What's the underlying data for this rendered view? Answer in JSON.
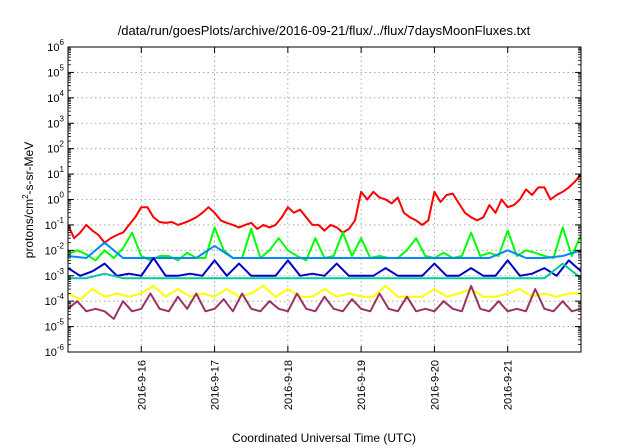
{
  "chart_data": {
    "type": "line",
    "title": "/data/run/goesPlots/archive/2016-09-21/flux/../flux/7daysMoonFluxes.txt",
    "xlabel": "Coordinated Universal Time (UTC)",
    "ylabel": "protons/cm2-s-sr-MeV",
    "ylabel_parts": [
      "protons/cm",
      "2",
      "-s-sr-MeV"
    ],
    "yscale": "log",
    "ylim": [
      1e-06,
      1000000.0
    ],
    "y_ticks": [
      {
        "base": "10",
        "exp": "-6"
      },
      {
        "base": "10",
        "exp": "-5"
      },
      {
        "base": "10",
        "exp": "-4"
      },
      {
        "base": "10",
        "exp": "-3"
      },
      {
        "base": "10",
        "exp": "-2"
      },
      {
        "base": "10",
        "exp": "-1"
      },
      {
        "base": "10",
        "exp": "0"
      },
      {
        "base": "10",
        "exp": "1"
      },
      {
        "base": "10",
        "exp": "2"
      },
      {
        "base": "10",
        "exp": "3"
      },
      {
        "base": "10",
        "exp": "4"
      },
      {
        "base": "10",
        "exp": "5"
      },
      {
        "base": "10",
        "exp": "6"
      }
    ],
    "xlim": [
      "2016-09-15T00:00",
      "2016-09-22T00:00"
    ],
    "x_ticks": [
      "2016-9-16",
      "2016-9-17",
      "2016-9-18",
      "2016-9-19",
      "2016-9-20",
      "2016-9-21"
    ],
    "x_tick_dates": [
      "2016-09-16",
      "2016-09-17",
      "2016-09-18",
      "2016-09-19",
      "2016-09-20",
      "2016-09-21"
    ],
    "grid": true,
    "legend": "none",
    "series": [
      {
        "color": "#ff0000",
        "x": [
          "2016-09-15T00:00",
          "2016-09-15T02:00",
          "2016-09-15T04:00",
          "2016-09-15T06:00",
          "2016-09-15T08:00",
          "2016-09-15T10:00",
          "2016-09-15T12:00",
          "2016-09-15T14:00",
          "2016-09-15T16:00",
          "2016-09-15T18:00",
          "2016-09-15T20:00",
          "2016-09-15T22:00",
          "2016-09-16T00:00",
          "2016-09-16T02:00",
          "2016-09-16T04:00",
          "2016-09-16T06:00",
          "2016-09-16T08:00",
          "2016-09-16T10:00",
          "2016-09-16T12:00",
          "2016-09-16T14:00",
          "2016-09-16T16:00",
          "2016-09-16T18:00",
          "2016-09-16T20:00",
          "2016-09-16T22:00",
          "2016-09-17T00:00",
          "2016-09-17T02:00",
          "2016-09-17T04:00",
          "2016-09-17T06:00",
          "2016-09-17T08:00",
          "2016-09-17T10:00",
          "2016-09-17T12:00",
          "2016-09-17T14:00",
          "2016-09-17T16:00",
          "2016-09-17T18:00",
          "2016-09-17T20:00",
          "2016-09-17T22:00",
          "2016-09-18T00:00",
          "2016-09-18T02:00",
          "2016-09-18T04:00",
          "2016-09-18T06:00",
          "2016-09-18T08:00",
          "2016-09-18T10:00",
          "2016-09-18T12:00",
          "2016-09-18T14:00",
          "2016-09-18T16:00",
          "2016-09-18T18:00",
          "2016-09-18T20:00",
          "2016-09-18T22:00",
          "2016-09-19T00:00",
          "2016-09-19T02:00",
          "2016-09-19T04:00",
          "2016-09-19T06:00",
          "2016-09-19T08:00",
          "2016-09-19T10:00",
          "2016-09-19T12:00",
          "2016-09-19T14:00",
          "2016-09-19T16:00",
          "2016-09-19T18:00",
          "2016-09-19T20:00",
          "2016-09-19T22:00",
          "2016-09-20T00:00",
          "2016-09-20T02:00",
          "2016-09-20T04:00",
          "2016-09-20T06:00",
          "2016-09-20T08:00",
          "2016-09-20T10:00",
          "2016-09-20T12:00",
          "2016-09-20T14:00",
          "2016-09-20T16:00",
          "2016-09-20T18:00",
          "2016-09-20T20:00",
          "2016-09-20T22:00",
          "2016-09-21T00:00",
          "2016-09-21T02:00",
          "2016-09-21T04:00",
          "2016-09-21T06:00",
          "2016-09-21T08:00",
          "2016-09-21T10:00",
          "2016-09-21T12:00",
          "2016-09-21T14:00",
          "2016-09-21T16:00",
          "2016-09-21T18:00",
          "2016-09-21T20:00",
          "2016-09-21T22:00",
          "2016-09-22T00:00"
        ],
        "values": [
          0.1,
          0.03,
          0.05,
          0.1,
          0.06,
          0.04,
          0.02,
          0.03,
          0.04,
          0.05,
          0.1,
          0.2,
          0.5,
          0.5,
          0.2,
          0.13,
          0.12,
          0.13,
          0.1,
          0.12,
          0.15,
          0.2,
          0.3,
          0.5,
          0.3,
          0.15,
          0.12,
          0.1,
          0.08,
          0.1,
          0.12,
          0.07,
          0.1,
          0.08,
          0.1,
          0.2,
          0.5,
          0.3,
          0.4,
          0.2,
          0.1,
          0.1,
          0.06,
          0.1,
          0.08,
          0.05,
          0.07,
          0.15,
          2.0,
          1.0,
          2.0,
          1.2,
          1.0,
          0.7,
          1.2,
          0.3,
          0.2,
          0.15,
          0.1,
          0.15,
          2.0,
          0.8,
          1.5,
          1.7,
          0.7,
          0.3,
          0.2,
          0.15,
          0.2,
          0.6,
          0.3,
          1.0,
          0.5,
          0.6,
          1.0,
          2.5,
          1.5,
          3.0,
          3.0,
          1.0,
          1.5,
          2.0,
          3.0,
          5.0,
          10.0
        ]
      },
      {
        "color": "#00ff00",
        "x": [
          "2016-09-15T00:00",
          "2016-09-15T03:00",
          "2016-09-15T06:00",
          "2016-09-15T09:00",
          "2016-09-15T12:00",
          "2016-09-15T15:00",
          "2016-09-15T18:00",
          "2016-09-15T21:00",
          "2016-09-16T00:00",
          "2016-09-16T03:00",
          "2016-09-16T06:00",
          "2016-09-16T09:00",
          "2016-09-16T12:00",
          "2016-09-16T15:00",
          "2016-09-16T18:00",
          "2016-09-16T21:00",
          "2016-09-17T00:00",
          "2016-09-17T03:00",
          "2016-09-17T06:00",
          "2016-09-17T09:00",
          "2016-09-17T12:00",
          "2016-09-17T15:00",
          "2016-09-17T18:00",
          "2016-09-17T21:00",
          "2016-09-18T00:00",
          "2016-09-18T03:00",
          "2016-09-18T06:00",
          "2016-09-18T09:00",
          "2016-09-18T12:00",
          "2016-09-18T15:00",
          "2016-09-18T18:00",
          "2016-09-18T21:00",
          "2016-09-19T00:00",
          "2016-09-19T03:00",
          "2016-09-19T06:00",
          "2016-09-19T09:00",
          "2016-09-19T12:00",
          "2016-09-19T15:00",
          "2016-09-19T18:00",
          "2016-09-19T21:00",
          "2016-09-20T00:00",
          "2016-09-20T03:00",
          "2016-09-20T06:00",
          "2016-09-20T09:00",
          "2016-09-20T12:00",
          "2016-09-20T15:00",
          "2016-09-20T18:00",
          "2016-09-20T21:00",
          "2016-09-21T00:00",
          "2016-09-21T03:00",
          "2016-09-21T06:00",
          "2016-09-21T09:00",
          "2016-09-21T12:00",
          "2016-09-21T15:00",
          "2016-09-21T18:00",
          "2016-09-21T21:00",
          "2016-09-22T00:00"
        ],
        "values": [
          0.007,
          0.01,
          0.007,
          0.004,
          0.01,
          0.005,
          0.012,
          0.05,
          0.006,
          0.004,
          0.006,
          0.006,
          0.004,
          0.008,
          0.005,
          0.005,
          0.08,
          0.01,
          0.005,
          0.005,
          0.07,
          0.005,
          0.01,
          0.03,
          0.01,
          0.006,
          0.004,
          0.03,
          0.005,
          0.006,
          0.05,
          0.006,
          0.03,
          0.005,
          0.006,
          0.005,
          0.005,
          0.01,
          0.03,
          0.006,
          0.005,
          0.008,
          0.005,
          0.006,
          0.05,
          0.006,
          0.008,
          0.006,
          0.06,
          0.006,
          0.01,
          0.008,
          0.006,
          0.005,
          0.08,
          0.006,
          0.04
        ]
      },
      {
        "color": "#0088ff",
        "x": [
          "2016-09-15T00:00",
          "2016-09-15T06:00",
          "2016-09-15T12:00",
          "2016-09-15T18:00",
          "2016-09-16T00:00",
          "2016-09-16T06:00",
          "2016-09-16T12:00",
          "2016-09-16T18:00",
          "2016-09-17T00:00",
          "2016-09-17T06:00",
          "2016-09-17T12:00",
          "2016-09-17T18:00",
          "2016-09-18T00:00",
          "2016-09-18T06:00",
          "2016-09-18T12:00",
          "2016-09-18T18:00",
          "2016-09-19T00:00",
          "2016-09-19T06:00",
          "2016-09-19T12:00",
          "2016-09-19T18:00",
          "2016-09-20T00:00",
          "2016-09-20T06:00",
          "2016-09-20T12:00",
          "2016-09-20T18:00",
          "2016-09-21T00:00",
          "2016-09-21T06:00",
          "2016-09-21T12:00",
          "2016-09-21T18:00",
          "2016-09-22T00:00"
        ],
        "values": [
          0.006,
          0.005,
          0.02,
          0.005,
          0.005,
          0.005,
          0.005,
          0.005,
          0.015,
          0.005,
          0.005,
          0.005,
          0.005,
          0.005,
          0.005,
          0.005,
          0.005,
          0.005,
          0.005,
          0.005,
          0.005,
          0.005,
          0.005,
          0.005,
          0.01,
          0.005,
          0.005,
          0.006,
          0.01
        ]
      },
      {
        "color": "#0000cc",
        "x": [
          "2016-09-15T00:00",
          "2016-09-15T04:00",
          "2016-09-15T08:00",
          "2016-09-15T12:00",
          "2016-09-15T16:00",
          "2016-09-15T20:00",
          "2016-09-16T00:00",
          "2016-09-16T04:00",
          "2016-09-16T08:00",
          "2016-09-16T12:00",
          "2016-09-16T16:00",
          "2016-09-16T20:00",
          "2016-09-17T00:00",
          "2016-09-17T04:00",
          "2016-09-17T08:00",
          "2016-09-17T12:00",
          "2016-09-17T16:00",
          "2016-09-17T20:00",
          "2016-09-18T00:00",
          "2016-09-18T04:00",
          "2016-09-18T08:00",
          "2016-09-18T12:00",
          "2016-09-18T16:00",
          "2016-09-18T20:00",
          "2016-09-19T00:00",
          "2016-09-19T04:00",
          "2016-09-19T08:00",
          "2016-09-19T12:00",
          "2016-09-19T16:00",
          "2016-09-19T20:00",
          "2016-09-20T00:00",
          "2016-09-20T04:00",
          "2016-09-20T08:00",
          "2016-09-20T12:00",
          "2016-09-20T16:00",
          "2016-09-20T20:00",
          "2016-09-21T00:00",
          "2016-09-21T04:00",
          "2016-09-21T08:00",
          "2016-09-21T12:00",
          "2016-09-21T16:00",
          "2016-09-21T20:00",
          "2016-09-22T00:00"
        ],
        "values": [
          0.002,
          0.001,
          0.0015,
          0.003,
          0.001,
          0.0012,
          0.001,
          0.005,
          0.001,
          0.001,
          0.0012,
          0.001,
          0.004,
          0.001,
          0.003,
          0.001,
          0.001,
          0.001,
          0.004,
          0.001,
          0.0012,
          0.001,
          0.003,
          0.001,
          0.001,
          0.001,
          0.002,
          0.001,
          0.001,
          0.001,
          0.003,
          0.001,
          0.001,
          0.002,
          0.001,
          0.001,
          0.004,
          0.001,
          0.0012,
          0.002,
          0.001,
          0.004,
          0.0015
        ]
      },
      {
        "color": "#00c8a0",
        "x": [
          "2016-09-15T00:00",
          "2016-09-15T06:00",
          "2016-09-15T12:00",
          "2016-09-15T18:00",
          "2016-09-16T00:00",
          "2016-09-16T06:00",
          "2016-09-16T12:00",
          "2016-09-16T18:00",
          "2016-09-17T00:00",
          "2016-09-17T06:00",
          "2016-09-17T12:00",
          "2016-09-17T18:00",
          "2016-09-18T00:00",
          "2016-09-18T06:00",
          "2016-09-18T12:00",
          "2016-09-18T18:00",
          "2016-09-19T00:00",
          "2016-09-19T06:00",
          "2016-09-19T12:00",
          "2016-09-19T18:00",
          "2016-09-20T00:00",
          "2016-09-20T06:00",
          "2016-09-20T12:00",
          "2016-09-20T18:00",
          "2016-09-21T00:00",
          "2016-09-21T06:00",
          "2016-09-21T12:00",
          "2016-09-21T18:00",
          "2016-09-22T00:00"
        ],
        "values": [
          0.0008,
          0.0008,
          0.0012,
          0.0008,
          0.0008,
          0.0008,
          0.0008,
          0.0008,
          0.0008,
          0.0008,
          0.0008,
          0.0008,
          0.0008,
          0.0008,
          0.0008,
          0.0008,
          0.0008,
          0.0008,
          0.0008,
          0.0008,
          0.0008,
          0.0008,
          0.0008,
          0.0008,
          0.0008,
          0.0008,
          0.0008,
          0.003,
          0.0008
        ]
      },
      {
        "color": "#ffff00",
        "x": [
          "2016-09-15T00:00",
          "2016-09-15T04:00",
          "2016-09-15T08:00",
          "2016-09-15T12:00",
          "2016-09-15T16:00",
          "2016-09-15T20:00",
          "2016-09-16T00:00",
          "2016-09-16T04:00",
          "2016-09-16T08:00",
          "2016-09-16T12:00",
          "2016-09-16T16:00",
          "2016-09-16T20:00",
          "2016-09-17T00:00",
          "2016-09-17T04:00",
          "2016-09-17T08:00",
          "2016-09-17T12:00",
          "2016-09-17T16:00",
          "2016-09-17T20:00",
          "2016-09-18T00:00",
          "2016-09-18T04:00",
          "2016-09-18T08:00",
          "2016-09-18T12:00",
          "2016-09-18T16:00",
          "2016-09-18T20:00",
          "2016-09-19T00:00",
          "2016-09-19T04:00",
          "2016-09-19T08:00",
          "2016-09-19T12:00",
          "2016-09-19T16:00",
          "2016-09-19T20:00",
          "2016-09-20T00:00",
          "2016-09-20T04:00",
          "2016-09-20T08:00",
          "2016-09-20T12:00",
          "2016-09-20T16:00",
          "2016-09-20T20:00",
          "2016-09-21T00:00",
          "2016-09-21T04:00",
          "2016-09-21T08:00",
          "2016-09-21T12:00",
          "2016-09-21T16:00",
          "2016-09-21T20:00",
          "2016-09-22T00:00"
        ],
        "values": [
          0.0002,
          0.00012,
          0.0003,
          0.00015,
          0.0002,
          0.00015,
          0.0002,
          0.0004,
          0.00015,
          0.0003,
          0.00015,
          0.0002,
          0.00015,
          0.0003,
          0.00015,
          0.0002,
          0.0004,
          0.00015,
          0.0003,
          0.00015,
          0.00015,
          0.0003,
          0.00015,
          0.0002,
          0.00015,
          0.00015,
          0.0004,
          0.00015,
          0.00015,
          0.00015,
          0.0003,
          0.00015,
          0.0002,
          0.0003,
          0.00015,
          0.00015,
          0.0002,
          0.0003,
          0.00015,
          0.0002,
          0.00015,
          0.0002,
          0.0002
        ]
      },
      {
        "color": "#993366",
        "x": [
          "2016-09-15T00:00",
          "2016-09-15T03:00",
          "2016-09-15T06:00",
          "2016-09-15T09:00",
          "2016-09-15T12:00",
          "2016-09-15T15:00",
          "2016-09-15T18:00",
          "2016-09-15T21:00",
          "2016-09-16T00:00",
          "2016-09-16T03:00",
          "2016-09-16T06:00",
          "2016-09-16T09:00",
          "2016-09-16T12:00",
          "2016-09-16T15:00",
          "2016-09-16T18:00",
          "2016-09-16T21:00",
          "2016-09-17T00:00",
          "2016-09-17T03:00",
          "2016-09-17T06:00",
          "2016-09-17T09:00",
          "2016-09-17T12:00",
          "2016-09-17T15:00",
          "2016-09-17T18:00",
          "2016-09-17T21:00",
          "2016-09-18T00:00",
          "2016-09-18T03:00",
          "2016-09-18T06:00",
          "2016-09-18T09:00",
          "2016-09-18T12:00",
          "2016-09-18T15:00",
          "2016-09-18T18:00",
          "2016-09-18T21:00",
          "2016-09-19T00:00",
          "2016-09-19T03:00",
          "2016-09-19T06:00",
          "2016-09-19T09:00",
          "2016-09-19T12:00",
          "2016-09-19T15:00",
          "2016-09-19T18:00",
          "2016-09-19T21:00",
          "2016-09-20T00:00",
          "2016-09-20T03:00",
          "2016-09-20T06:00",
          "2016-09-20T09:00",
          "2016-09-20T12:00",
          "2016-09-20T15:00",
          "2016-09-20T18:00",
          "2016-09-20T21:00",
          "2016-09-21T00:00",
          "2016-09-21T03:00",
          "2016-09-21T06:00",
          "2016-09-21T09:00",
          "2016-09-21T12:00",
          "2016-09-21T15:00",
          "2016-09-21T18:00",
          "2016-09-21T21:00",
          "2016-09-22T00:00"
        ],
        "values": [
          5e-05,
          0.0001,
          4e-05,
          5e-05,
          4e-05,
          2e-05,
          0.0001,
          4e-05,
          5e-05,
          0.0002,
          5e-05,
          4e-05,
          0.00015,
          5e-05,
          0.0002,
          4e-05,
          5e-05,
          0.00012,
          4e-05,
          0.0002,
          5e-05,
          4e-05,
          0.0001,
          5e-05,
          4e-05,
          0.0002,
          5e-05,
          4e-05,
          0.00015,
          5e-05,
          4e-05,
          0.00012,
          5e-05,
          4e-05,
          0.0002,
          5e-05,
          4e-05,
          0.00015,
          4e-05,
          5e-05,
          4e-05,
          0.0001,
          5e-05,
          4e-05,
          0.0004,
          5e-05,
          4e-05,
          0.0001,
          4e-05,
          5e-05,
          4e-05,
          0.0003,
          5e-05,
          4e-05,
          0.0001,
          4e-05,
          5e-05
        ]
      }
    ]
  }
}
